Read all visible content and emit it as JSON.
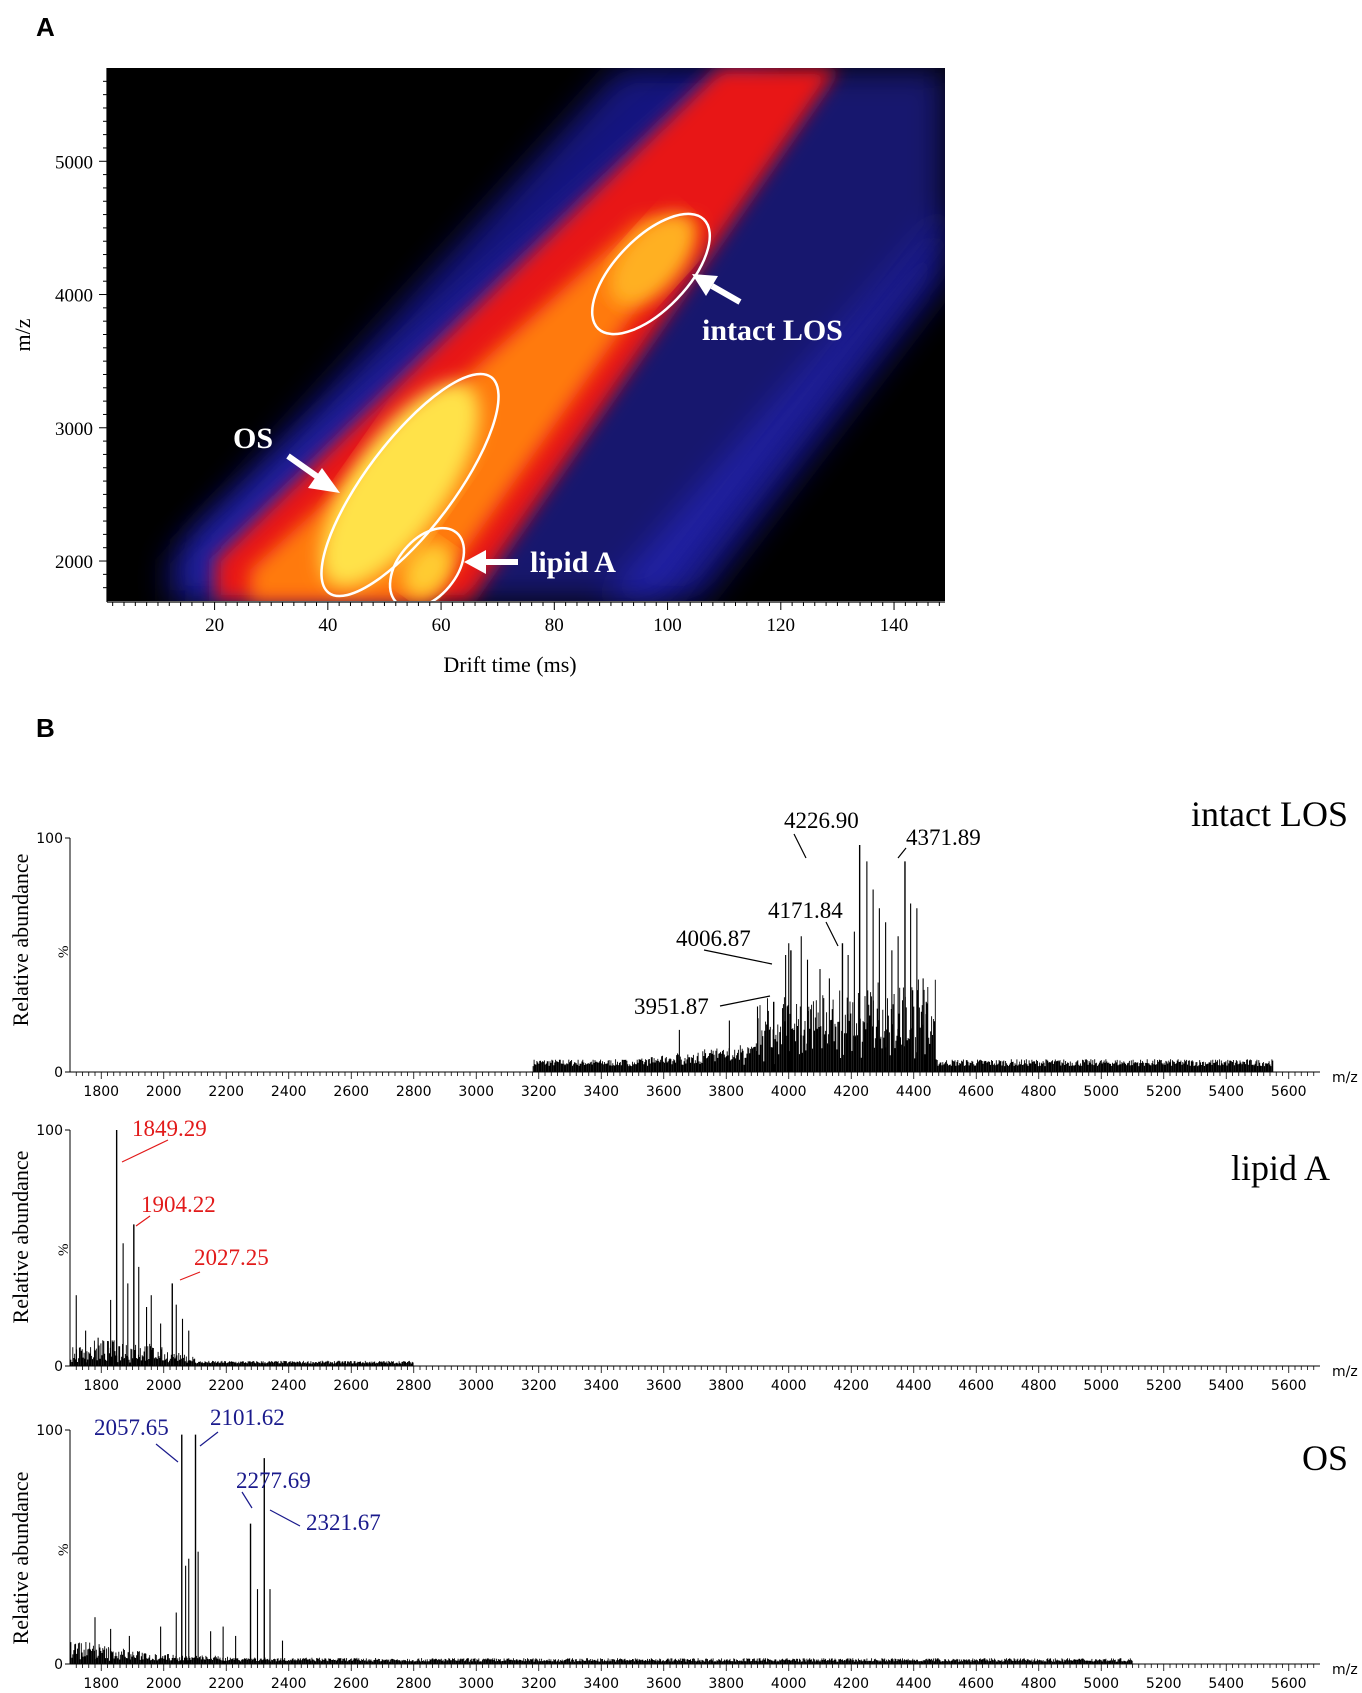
{
  "panels": {
    "a": "A",
    "b": "B"
  },
  "colors": {
    "heat_low": "#000000",
    "heat_mid1": "#2020c0",
    "heat_mid2": "#ff2000",
    "heat_high": "#ffff40",
    "lipid_a_labels": "#e21a1a",
    "os_labels": "#1a1a8c",
    "los_labels": "#000000"
  },
  "chart_data": [
    {
      "type": "heatmap",
      "panel": "A",
      "xlabel": "Drift time (ms)",
      "ylabel": "m/z",
      "xlim": [
        1,
        149
      ],
      "ylim": [
        1700,
        5700
      ],
      "x_ticks": [
        20,
        40,
        60,
        80,
        100,
        120,
        140
      ],
      "y_ticks": [
        2000,
        3000,
        4000,
        5000
      ],
      "trend": {
        "description_points": [
          [
            30,
            1700
          ],
          [
            60,
            3000
          ],
          [
            100,
            4300
          ],
          [
            130,
            5700
          ]
        ]
      },
      "regions": [
        {
          "label": "OS",
          "center": [
            52,
            2730
          ],
          "note": ""
        },
        {
          "label": "lipid A",
          "center": [
            58,
            1950
          ],
          "note": ""
        },
        {
          "label": "intact LOS",
          "center": [
            98,
            4180
          ],
          "note": ""
        }
      ],
      "region_labels": [
        "OS",
        "lipid A",
        "intact LOS"
      ]
    },
    {
      "type": "line",
      "panel": "B",
      "title": "intact LOS",
      "xlabel": "m/z",
      "ylabel": "Relative abundance",
      "y_unit_label": "%",
      "xlim": [
        1700,
        5700
      ],
      "ylim": [
        0,
        100
      ],
      "x_ticks": [
        1800,
        2000,
        2200,
        2400,
        2600,
        2800,
        3000,
        3200,
        3400,
        3600,
        3800,
        4000,
        4200,
        4400,
        4600,
        4800,
        5000,
        5200,
        5400,
        5600
      ],
      "y_ticks": [
        "0",
        "100"
      ],
      "peaks": [
        {
          "mz": 3951.87,
          "abundance": 30
        },
        {
          "mz": 4006.87,
          "abundance": 52
        },
        {
          "mz": 4171.84,
          "abundance": 55
        },
        {
          "mz": 4226.9,
          "abundance": 97
        },
        {
          "mz": 4371.89,
          "abundance": 90
        }
      ],
      "peak_labels": [
        "3951.87",
        "4006.87",
        "4171.84",
        "4226.90",
        "4371.89"
      ]
    },
    {
      "type": "line",
      "panel": "B",
      "title": "lipid A",
      "xlabel": "m/z",
      "ylabel": "Relative abundance",
      "y_unit_label": "%",
      "xlim": [
        1700,
        5700
      ],
      "ylim": [
        0,
        100
      ],
      "x_ticks": [
        1800,
        2000,
        2200,
        2400,
        2600,
        2800,
        3000,
        3200,
        3400,
        3600,
        3800,
        4000,
        4200,
        4400,
        4600,
        4800,
        5000,
        5200,
        5400,
        5600
      ],
      "y_ticks": [
        "0",
        "100"
      ],
      "peaks": [
        {
          "mz": 1849.29,
          "abundance": 100
        },
        {
          "mz": 1904.22,
          "abundance": 60
        },
        {
          "mz": 2027.25,
          "abundance": 35
        }
      ],
      "peak_labels": [
        "1849.29",
        "1904.22",
        "2027.25"
      ]
    },
    {
      "type": "line",
      "panel": "B",
      "title": "OS",
      "xlabel": "m/z",
      "ylabel": "Relative abundance",
      "y_unit_label": "%",
      "xlim": [
        1700,
        5700
      ],
      "ylim": [
        0,
        100
      ],
      "x_ticks": [
        1800,
        2000,
        2200,
        2400,
        2600,
        2800,
        3000,
        3200,
        3400,
        3600,
        3800,
        4000,
        4200,
        4400,
        4600,
        4800,
        5000,
        5200,
        5400,
        5600
      ],
      "y_ticks": [
        "0",
        "100"
      ],
      "peaks": [
        {
          "mz": 2057.65,
          "abundance": 98
        },
        {
          "mz": 2101.62,
          "abundance": 98
        },
        {
          "mz": 2277.69,
          "abundance": 60
        },
        {
          "mz": 2321.67,
          "abundance": 88
        }
      ],
      "peak_labels": [
        "2057.65",
        "2101.62",
        "2277.69",
        "2321.67"
      ]
    }
  ]
}
